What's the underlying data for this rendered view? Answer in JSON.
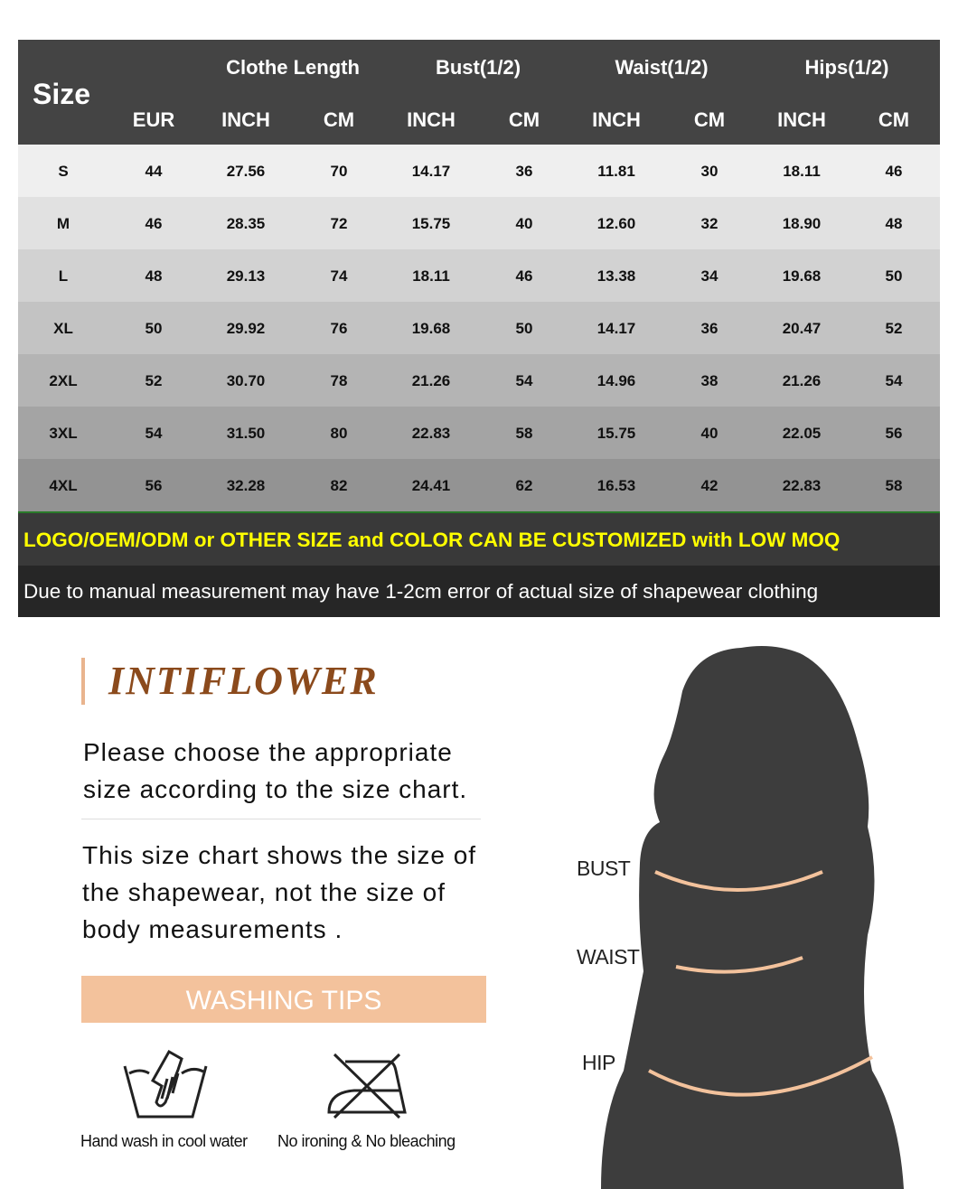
{
  "table": {
    "size_header": "Size",
    "groups": [
      "Clothe Length",
      "Bust(1/2)",
      "Waist(1/2)",
      "Hips(1/2)"
    ],
    "units": [
      "EUR",
      "INCH",
      "CM",
      "INCH",
      "CM",
      "INCH",
      "CM",
      "INCH",
      "CM"
    ],
    "rows": [
      [
        "S",
        "44",
        "27.56",
        "70",
        "14.17",
        "36",
        "11.81",
        "30",
        "18.11",
        "46"
      ],
      [
        "M",
        "46",
        "28.35",
        "72",
        "15.75",
        "40",
        "12.60",
        "32",
        "18.90",
        "48"
      ],
      [
        "L",
        "48",
        "29.13",
        "74",
        "18.11",
        "46",
        "13.38",
        "34",
        "19.68",
        "50"
      ],
      [
        "XL",
        "50",
        "29.92",
        "76",
        "19.68",
        "50",
        "14.17",
        "36",
        "20.47",
        "52"
      ],
      [
        "2XL",
        "52",
        "30.70",
        "78",
        "21.26",
        "54",
        "14.96",
        "38",
        "21.26",
        "54"
      ],
      [
        "3XL",
        "54",
        "31.50",
        "80",
        "22.83",
        "58",
        "15.75",
        "40",
        "22.05",
        "56"
      ],
      [
        "4XL",
        "56",
        "32.28",
        "82",
        "24.41",
        "62",
        "16.53",
        "42",
        "22.83",
        "58"
      ]
    ],
    "row_colors": [
      "#efefef",
      "#e1e1e1",
      "#d2d2d2",
      "#c3c3c3",
      "#b4b4b4",
      "#a4a4a4",
      "#939393"
    ],
    "banner": "LOGO/OEM/ODM or OTHER SIZE and COLOR CAN BE CUSTOMIZED with LOW MOQ",
    "note": "Due to manual measurement may have 1-2cm error of actual size of shapewear clothing"
  },
  "brand": "INTIFLOWER",
  "text1": [
    "Please choose the appropriate",
    "size according to the size chart."
  ],
  "text2": [
    "This size chart shows the size of",
    "the  shapewear, not the  size of",
    "body measurements ."
  ],
  "washing": {
    "title": "WASHING TIPS",
    "items": [
      {
        "icon": "hand-wash-icon",
        "label": "Hand wash in cool water"
      },
      {
        "icon": "no-ironing-icon",
        "label": "No ironing & No bleaching"
      }
    ]
  },
  "figure": {
    "labels": [
      "BUST",
      "WAIST",
      "HIP"
    ]
  },
  "colors": {
    "header": "#444444",
    "banner_text": "#ffff00",
    "brand": "#8b4a1c",
    "washing_bg": "#f3c29c",
    "measure_line": "#f3c29c"
  }
}
